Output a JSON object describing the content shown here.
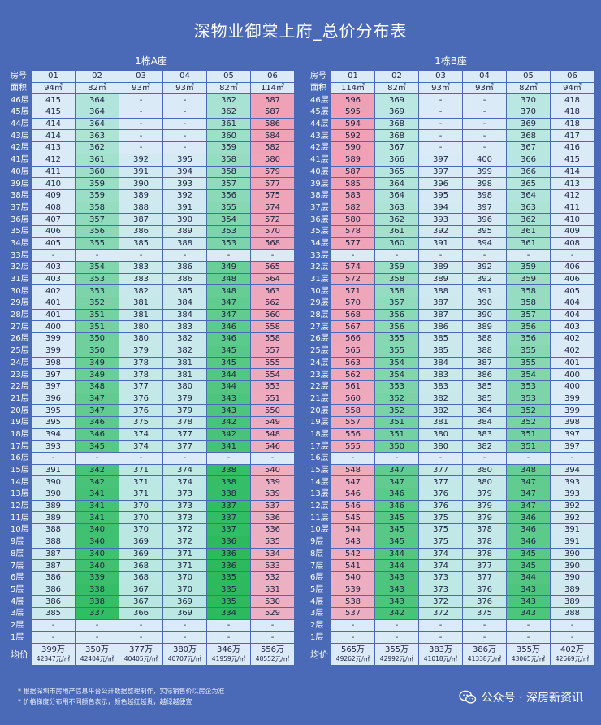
{
  "title": "深物业御棠上府_总价分布表",
  "labels": {
    "room": "房号",
    "area": "面积",
    "avg": "均价"
  },
  "colors": {
    "low": "#2dba5f",
    "mid": "#b6e7df",
    "pale": "#dbeaf7",
    "high": "#f0a0b4",
    "bg": "#4a6ab8"
  },
  "blocks": [
    {
      "title": "1栋A座",
      "units": [
        {
          "room": "01",
          "area": "94㎡",
          "avg": "399万",
          "avg_unit": "42347元/㎡"
        },
        {
          "room": "02",
          "area": "82㎡",
          "avg": "350万",
          "avg_unit": "42404元/㎡"
        },
        {
          "room": "03",
          "area": "93㎡",
          "avg": "377万",
          "avg_unit": "40405元/㎡"
        },
        {
          "room": "04",
          "area": "93㎡",
          "avg": "380万",
          "avg_unit": "40707元/㎡"
        },
        {
          "room": "05",
          "area": "82㎡",
          "avg": "346万",
          "avg_unit": "41959元/㎡"
        },
        {
          "room": "06",
          "area": "114㎡",
          "avg": "556万",
          "avg_unit": "48552元/㎡"
        }
      ],
      "rows": [
        [
          "46层",
          "415",
          "364",
          "-",
          "-",
          "362",
          "587"
        ],
        [
          "45层",
          "415",
          "364",
          "-",
          "-",
          "362",
          "587"
        ],
        [
          "44层",
          "414",
          "364",
          "-",
          "-",
          "361",
          "586"
        ],
        [
          "43层",
          "414",
          "363",
          "-",
          "-",
          "360",
          "584"
        ],
        [
          "42层",
          "413",
          "362",
          "-",
          "-",
          "359",
          "582"
        ],
        [
          "41层",
          "412",
          "361",
          "392",
          "395",
          "358",
          "580"
        ],
        [
          "40层",
          "411",
          "360",
          "391",
          "394",
          "358",
          "579"
        ],
        [
          "39层",
          "410",
          "359",
          "390",
          "393",
          "357",
          "577"
        ],
        [
          "38层",
          "409",
          "359",
          "389",
          "392",
          "356",
          "575"
        ],
        [
          "37层",
          "408",
          "358",
          "388",
          "391",
          "355",
          "574"
        ],
        [
          "36层",
          "407",
          "357",
          "387",
          "390",
          "354",
          "572"
        ],
        [
          "35层",
          "406",
          "356",
          "386",
          "389",
          "353",
          "570"
        ],
        [
          "34层",
          "405",
          "355",
          "385",
          "388",
          "353",
          "568"
        ],
        [
          "33层",
          "-",
          "-",
          "-",
          "-",
          "-",
          "-"
        ],
        [
          "32层",
          "403",
          "354",
          "383",
          "386",
          "349",
          "565"
        ],
        [
          "31层",
          "403",
          "353",
          "383",
          "386",
          "348",
          "564"
        ],
        [
          "30层",
          "402",
          "353",
          "382",
          "385",
          "348",
          "563"
        ],
        [
          "29层",
          "401",
          "352",
          "381",
          "384",
          "347",
          "562"
        ],
        [
          "28层",
          "401",
          "351",
          "381",
          "384",
          "347",
          "560"
        ],
        [
          "27层",
          "400",
          "351",
          "380",
          "383",
          "346",
          "558"
        ],
        [
          "26层",
          "399",
          "350",
          "380",
          "382",
          "346",
          "558"
        ],
        [
          "25层",
          "399",
          "350",
          "379",
          "382",
          "345",
          "557"
        ],
        [
          "24层",
          "398",
          "349",
          "378",
          "381",
          "345",
          "555"
        ],
        [
          "23层",
          "397",
          "349",
          "378",
          "381",
          "344",
          "554"
        ],
        [
          "22层",
          "397",
          "348",
          "377",
          "380",
          "344",
          "553"
        ],
        [
          "21层",
          "396",
          "347",
          "376",
          "379",
          "343",
          "551"
        ],
        [
          "20层",
          "395",
          "347",
          "376",
          "379",
          "343",
          "550"
        ],
        [
          "19层",
          "395",
          "346",
          "375",
          "378",
          "342",
          "549"
        ],
        [
          "18层",
          "394",
          "346",
          "374",
          "377",
          "342",
          "548"
        ],
        [
          "17层",
          "393",
          "345",
          "374",
          "377",
          "341",
          "546"
        ],
        [
          "16层",
          "-",
          "-",
          "-",
          "-",
          "-",
          "-"
        ],
        [
          "15层",
          "391",
          "342",
          "371",
          "374",
          "338",
          "540"
        ],
        [
          "14层",
          "390",
          "342",
          "371",
          "374",
          "338",
          "539"
        ],
        [
          "13层",
          "390",
          "341",
          "371",
          "373",
          "338",
          "539"
        ],
        [
          "12层",
          "389",
          "341",
          "370",
          "373",
          "337",
          "537"
        ],
        [
          "11层",
          "389",
          "341",
          "370",
          "373",
          "337",
          "536"
        ],
        [
          "10层",
          "388",
          "340",
          "370",
          "372",
          "337",
          "536"
        ],
        [
          "9层",
          "388",
          "340",
          "369",
          "372",
          "336",
          "535"
        ],
        [
          "8层",
          "387",
          "340",
          "369",
          "371",
          "336",
          "534"
        ],
        [
          "7层",
          "387",
          "340",
          "368",
          "371",
          "336",
          "533"
        ],
        [
          "6层",
          "386",
          "339",
          "368",
          "370",
          "335",
          "532"
        ],
        [
          "5层",
          "386",
          "338",
          "367",
          "370",
          "335",
          "531"
        ],
        [
          "4层",
          "386",
          "338",
          "367",
          "369",
          "335",
          "530"
        ],
        [
          "3层",
          "385",
          "337",
          "366",
          "369",
          "334",
          "529"
        ],
        [
          "2层",
          "-",
          "-",
          "-",
          "-",
          "-",
          "-"
        ],
        [
          "1层",
          "-",
          "-",
          "-",
          "-",
          "-",
          "-"
        ]
      ]
    },
    {
      "title": "1栋B座",
      "units": [
        {
          "room": "01",
          "area": "114㎡",
          "avg": "565万",
          "avg_unit": "49262元/㎡"
        },
        {
          "room": "02",
          "area": "82㎡",
          "avg": "355万",
          "avg_unit": "42992元/㎡"
        },
        {
          "room": "03",
          "area": "93㎡",
          "avg": "383万",
          "avg_unit": "41018元/㎡"
        },
        {
          "room": "04",
          "area": "93㎡",
          "avg": "386万",
          "avg_unit": "41338元/㎡"
        },
        {
          "room": "05",
          "area": "82㎡",
          "avg": "355万",
          "avg_unit": "43065元/㎡"
        },
        {
          "room": "06",
          "area": "94㎡",
          "avg": "402万",
          "avg_unit": "42669元/㎡"
        }
      ],
      "rows": [
        [
          "46层",
          "596",
          "369",
          "-",
          "-",
          "370",
          "418"
        ],
        [
          "45层",
          "595",
          "369",
          "-",
          "-",
          "370",
          "418"
        ],
        [
          "44层",
          "594",
          "368",
          "-",
          "-",
          "369",
          "418"
        ],
        [
          "43层",
          "592",
          "368",
          "-",
          "-",
          "368",
          "417"
        ],
        [
          "42层",
          "590",
          "367",
          "-",
          "-",
          "367",
          "416"
        ],
        [
          "41层",
          "589",
          "366",
          "397",
          "400",
          "366",
          "415"
        ],
        [
          "40层",
          "587",
          "365",
          "397",
          "399",
          "366",
          "414"
        ],
        [
          "39层",
          "585",
          "364",
          "396",
          "398",
          "365",
          "413"
        ],
        [
          "38层",
          "583",
          "364",
          "395",
          "398",
          "364",
          "412"
        ],
        [
          "37层",
          "582",
          "363",
          "394",
          "397",
          "363",
          "411"
        ],
        [
          "36层",
          "580",
          "362",
          "393",
          "396",
          "362",
          "410"
        ],
        [
          "35层",
          "578",
          "361",
          "392",
          "395",
          "361",
          "409"
        ],
        [
          "34层",
          "577",
          "360",
          "391",
          "394",
          "361",
          "408"
        ],
        [
          "33层",
          "-",
          "-",
          "-",
          "-",
          "-",
          "-"
        ],
        [
          "32层",
          "574",
          "359",
          "389",
          "392",
          "359",
          "406"
        ],
        [
          "31层",
          "572",
          "358",
          "389",
          "392",
          "359",
          "406"
        ],
        [
          "30层",
          "571",
          "358",
          "388",
          "391",
          "358",
          "405"
        ],
        [
          "29层",
          "570",
          "357",
          "387",
          "390",
          "358",
          "404"
        ],
        [
          "28层",
          "568",
          "356",
          "387",
          "390",
          "357",
          "404"
        ],
        [
          "27层",
          "567",
          "356",
          "386",
          "389",
          "356",
          "403"
        ],
        [
          "26层",
          "566",
          "355",
          "385",
          "388",
          "356",
          "402"
        ],
        [
          "25层",
          "565",
          "355",
          "385",
          "388",
          "355",
          "402"
        ],
        [
          "24层",
          "563",
          "354",
          "384",
          "387",
          "355",
          "401"
        ],
        [
          "23层",
          "562",
          "354",
          "383",
          "386",
          "354",
          "400"
        ],
        [
          "22层",
          "561",
          "353",
          "383",
          "385",
          "353",
          "400"
        ],
        [
          "21层",
          "560",
          "352",
          "382",
          "385",
          "353",
          "399"
        ],
        [
          "20层",
          "558",
          "352",
          "382",
          "384",
          "352",
          "399"
        ],
        [
          "19层",
          "557",
          "351",
          "381",
          "384",
          "352",
          "398"
        ],
        [
          "18层",
          "556",
          "351",
          "380",
          "383",
          "351",
          "397"
        ],
        [
          "17层",
          "555",
          "350",
          "380",
          "382",
          "351",
          "397"
        ],
        [
          "16层",
          "-",
          "-",
          "-",
          "-",
          "-",
          "-"
        ],
        [
          "15层",
          "548",
          "347",
          "377",
          "380",
          "348",
          "394"
        ],
        [
          "14层",
          "547",
          "347",
          "377",
          "380",
          "347",
          "393"
        ],
        [
          "13层",
          "546",
          "346",
          "376",
          "379",
          "347",
          "393"
        ],
        [
          "12层",
          "546",
          "346",
          "376",
          "379",
          "347",
          "392"
        ],
        [
          "11层",
          "545",
          "345",
          "375",
          "379",
          "346",
          "392"
        ],
        [
          "10层",
          "544",
          "345",
          "375",
          "378",
          "346",
          "391"
        ],
        [
          "9层",
          "543",
          "345",
          "375",
          "378",
          "346",
          "391"
        ],
        [
          "8层",
          "542",
          "344",
          "374",
          "378",
          "345",
          "390"
        ],
        [
          "7层",
          "541",
          "344",
          "374",
          "377",
          "345",
          "390"
        ],
        [
          "6层",
          "540",
          "343",
          "373",
          "377",
          "344",
          "390"
        ],
        [
          "5层",
          "539",
          "343",
          "373",
          "376",
          "343",
          "389"
        ],
        [
          "4层",
          "538",
          "343",
          "372",
          "376",
          "343",
          "389"
        ],
        [
          "3层",
          "537",
          "342",
          "372",
          "375",
          "343",
          "388"
        ],
        [
          "2层",
          "-",
          "-",
          "-",
          "-",
          "-",
          "-"
        ],
        [
          "1层",
          "-",
          "-",
          "-",
          "-",
          "-",
          "-"
        ]
      ]
    }
  ],
  "notes": [
    "* 根据深圳市房地产信息平台公开数据整理制作，实际销售价以房企为准",
    "* 价格梯度分布用不同颜色表示，颜色越红越贵，越绿越便宜"
  ],
  "watermark": "公众号 · 深房新资讯",
  "icons": {
    "watermark": "wechat-icon"
  }
}
